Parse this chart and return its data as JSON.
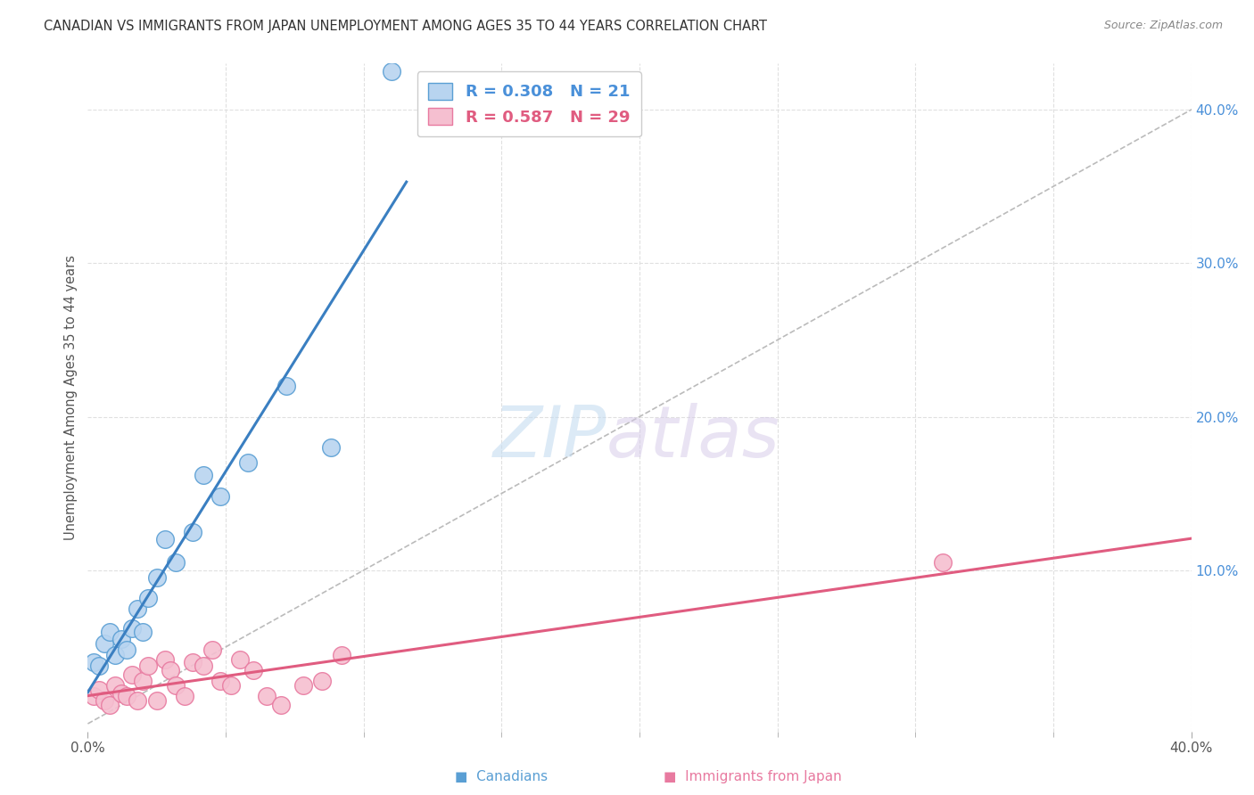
{
  "title": "CANADIAN VS IMMIGRANTS FROM JAPAN UNEMPLOYMENT AMONG AGES 35 TO 44 YEARS CORRELATION CHART",
  "source": "Source: ZipAtlas.com",
  "ylabel": "Unemployment Among Ages 35 to 44 years",
  "xlim": [
    0,
    0.4
  ],
  "ylim": [
    -0.005,
    0.43
  ],
  "yticks_right": [
    0.1,
    0.2,
    0.3,
    0.4
  ],
  "ytick_right_labels": [
    "10.0%",
    "20.0%",
    "30.0%",
    "40.0%"
  ],
  "canadians_R": 0.308,
  "canadians_N": 21,
  "japan_R": 0.587,
  "japan_N": 29,
  "canadians_color": "#b8d4f0",
  "canadians_edge_color": "#5a9fd4",
  "canadians_line_color": "#3a7fc1",
  "japan_color": "#f5bfd0",
  "japan_edge_color": "#e87aa0",
  "japan_line_color": "#e05c80",
  "ref_line_color": "#bbbbbb",
  "legend_blue": "#4a90d9",
  "legend_pink": "#e05c80",
  "canadians_x": [
    0.002,
    0.004,
    0.006,
    0.008,
    0.01,
    0.012,
    0.014,
    0.016,
    0.018,
    0.02,
    0.022,
    0.025,
    0.028,
    0.032,
    0.038,
    0.042,
    0.048,
    0.058,
    0.072,
    0.088,
    0.11
  ],
  "canadians_y": [
    0.04,
    0.038,
    0.052,
    0.06,
    0.045,
    0.055,
    0.048,
    0.062,
    0.075,
    0.06,
    0.082,
    0.095,
    0.12,
    0.105,
    0.125,
    0.162,
    0.148,
    0.17,
    0.22,
    0.18,
    0.425
  ],
  "japan_x": [
    0.002,
    0.004,
    0.006,
    0.008,
    0.01,
    0.012,
    0.014,
    0.016,
    0.018,
    0.02,
    0.022,
    0.025,
    0.028,
    0.03,
    0.032,
    0.035,
    0.038,
    0.042,
    0.045,
    0.048,
    0.052,
    0.055,
    0.06,
    0.065,
    0.07,
    0.078,
    0.085,
    0.092,
    0.31
  ],
  "japan_y": [
    0.018,
    0.022,
    0.015,
    0.012,
    0.025,
    0.02,
    0.018,
    0.032,
    0.015,
    0.028,
    0.038,
    0.015,
    0.042,
    0.035,
    0.025,
    0.018,
    0.04,
    0.038,
    0.048,
    0.028,
    0.025,
    0.042,
    0.035,
    0.018,
    0.012,
    0.025,
    0.028,
    0.045,
    0.105
  ],
  "watermark_zip": "ZIP",
  "watermark_atlas": "atlas",
  "background_color": "#ffffff",
  "grid_color": "#e0e0e0",
  "grid_linestyle": "--"
}
